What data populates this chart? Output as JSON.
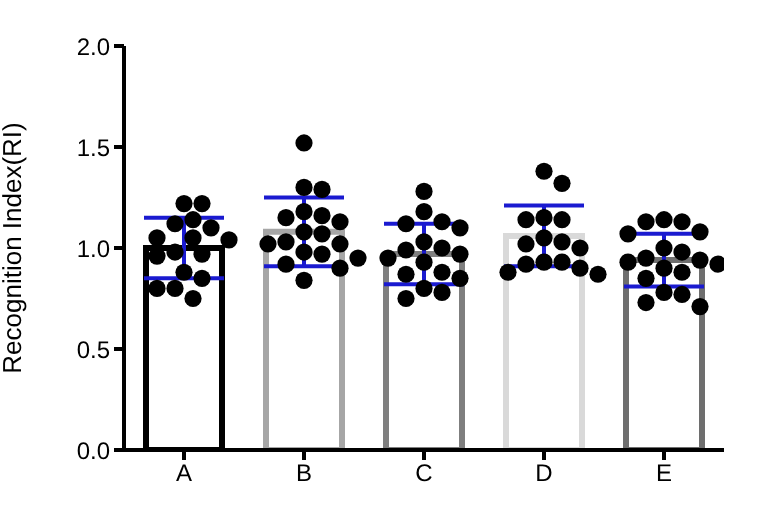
{
  "chart_data": {
    "type": "bar",
    "ylabel": "Recognition Index(RI)",
    "categories": [
      "A",
      "B",
      "C",
      "D",
      "E"
    ],
    "ylim": [
      0,
      2
    ],
    "yticks": [
      {
        "value": 0,
        "label": "0.0"
      },
      {
        "value": 0.5,
        "label": "0.5"
      },
      {
        "value": 1,
        "label": "1.0"
      },
      {
        "value": 1.5,
        "label": "1.5"
      },
      {
        "value": 2,
        "label": "2.0"
      }
    ],
    "grid": false,
    "legend": false,
    "series": [
      {
        "values": [
          1.0,
          1.08,
          0.97,
          1.06,
          0.94
        ],
        "errors": [
          0.15,
          0.17,
          0.15,
          0.15,
          0.13
        ],
        "colors": [
          "#000000",
          "#a6a6a6",
          "#7f7f7f",
          "#d9d9d9",
          "#6e6e6e"
        ]
      },
      {
        "type": "scatter",
        "color": "#000000",
        "marker": "circle",
        "x": [
          "A",
          "A",
          "A",
          "A",
          "A",
          "A",
          "A",
          "A",
          "A",
          "A",
          "A",
          "A",
          "A",
          "A",
          "A",
          "A",
          "B",
          "B",
          "B",
          "B",
          "B",
          "B",
          "B",
          "B",
          "B",
          "B",
          "B",
          "B",
          "B",
          "B",
          "B",
          "B",
          "B",
          "B",
          "C",
          "C",
          "C",
          "C",
          "C",
          "C",
          "C",
          "C",
          "C",
          "C",
          "C",
          "C",
          "C",
          "C",
          "C",
          "C",
          "C",
          "D",
          "D",
          "D",
          "D",
          "D",
          "D",
          "D",
          "D",
          "D",
          "D",
          "D",
          "D",
          "D",
          "D",
          "D",
          "E",
          "E",
          "E",
          "E",
          "E",
          "E",
          "E",
          "E",
          "E",
          "E",
          "E",
          "E",
          "E",
          "E",
          "E",
          "E",
          "E",
          "E"
        ],
        "values": [
          1.22,
          1.22,
          1.14,
          1.12,
          1.1,
          1.05,
          1.04,
          1.05,
          0.98,
          0.97,
          0.96,
          0.88,
          0.85,
          0.8,
          0.8,
          0.75,
          1.52,
          1.3,
          1.29,
          1.18,
          1.16,
          1.15,
          1.13,
          1.08,
          1.07,
          1.03,
          1.02,
          1.02,
          0.97,
          0.98,
          0.95,
          0.92,
          0.9,
          0.84,
          1.28,
          1.18,
          1.13,
          1.12,
          1.1,
          1.03,
          1.0,
          0.99,
          0.97,
          0.95,
          0.93,
          0.88,
          0.87,
          0.85,
          0.8,
          0.78,
          0.75,
          1.38,
          1.32,
          1.15,
          1.14,
          1.14,
          1.05,
          1.03,
          1.02,
          1.0,
          0.93,
          0.93,
          0.92,
          0.9,
          0.88,
          0.87,
          1.14,
          1.13,
          1.13,
          1.08,
          1.07,
          1.0,
          0.98,
          0.95,
          0.94,
          0.93,
          0.92,
          0.9,
          0.88,
          0.85,
          0.78,
          0.77,
          0.73,
          0.71
        ]
      }
    ]
  }
}
